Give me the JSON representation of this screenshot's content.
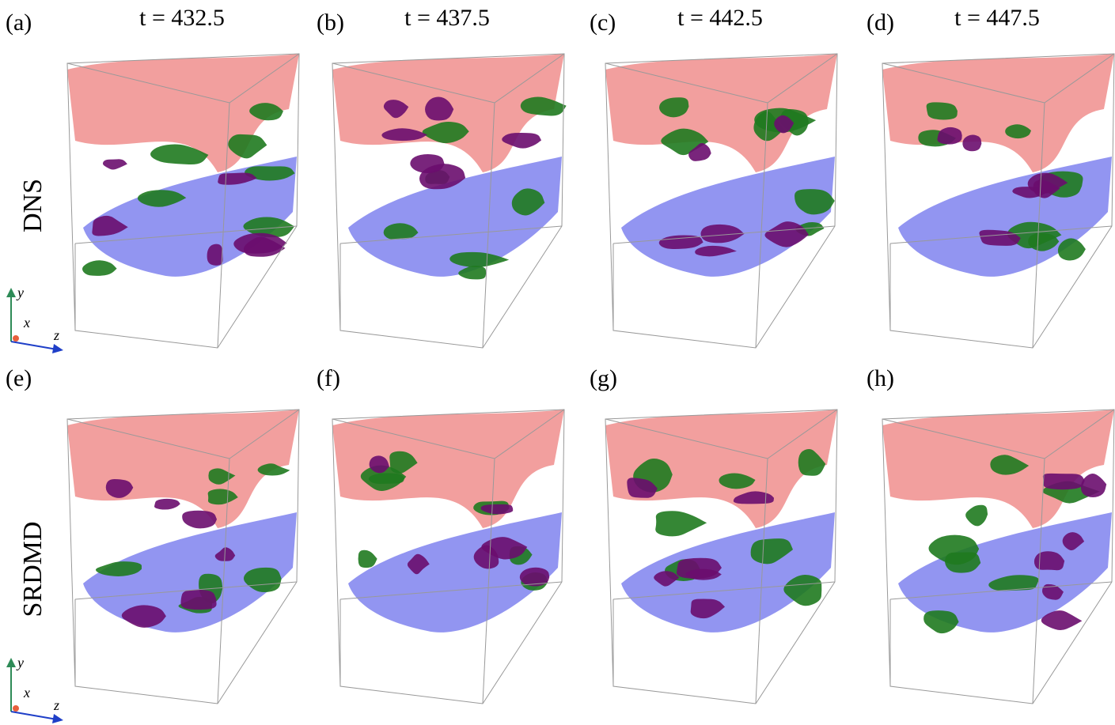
{
  "columns": [
    {
      "time": "t = 432.5"
    },
    {
      "time": "t = 437.5"
    },
    {
      "time": "t = 442.5"
    },
    {
      "time": "t = 447.5"
    }
  ],
  "panels": [
    "(a)",
    "(b)",
    "(c)",
    "(d)",
    "(e)",
    "(f)",
    "(g)",
    "(h)"
  ],
  "row_labels": [
    "DNS",
    "SRDMD"
  ],
  "axis_labels": {
    "y": "y",
    "x": "x",
    "z": "z"
  }
}
